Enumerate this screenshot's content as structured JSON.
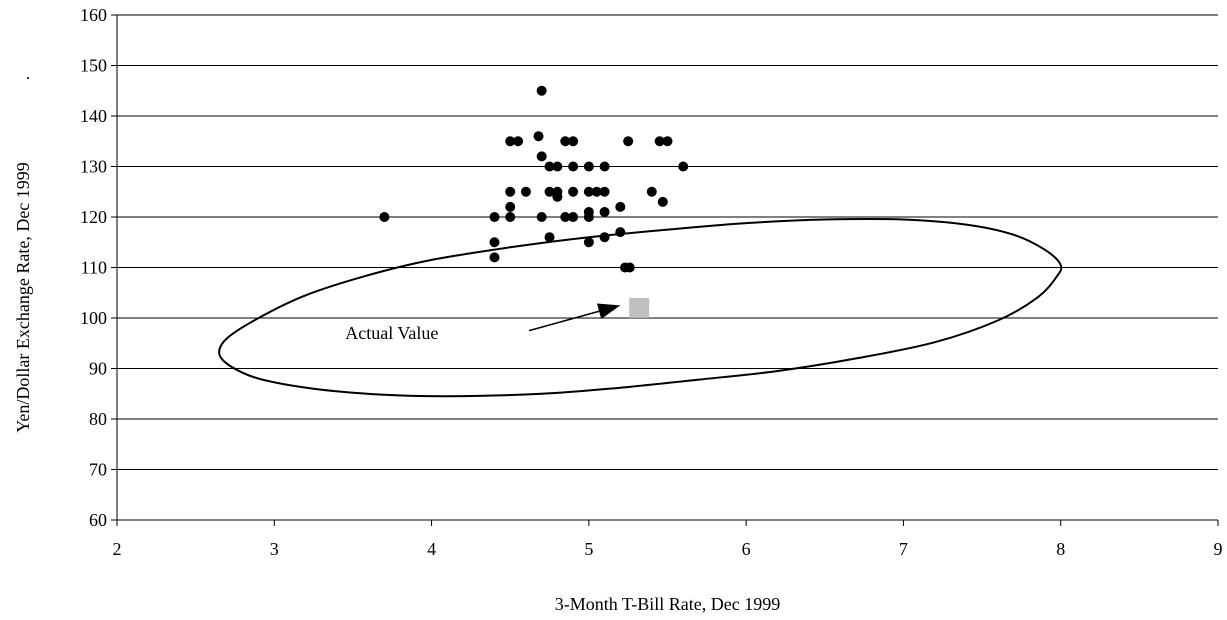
{
  "chart_data": {
    "type": "scatter",
    "title": "",
    "xlabel": "3-Month T-Bill Rate, Dec 1999",
    "ylabel": "Yen/Dollar Exchange Rate, Dec 1999",
    "ylabel_trailing_mark": ".",
    "xlim": [
      2,
      9
    ],
    "ylim": [
      60,
      160
    ],
    "x_ticks": [
      2,
      3,
      4,
      5,
      6,
      7,
      8,
      9
    ],
    "y_ticks": [
      60,
      70,
      80,
      90,
      100,
      110,
      120,
      130,
      140,
      150,
      160
    ],
    "grid": "horizontal",
    "legend": "none",
    "series": [
      {
        "marker": "circle",
        "color": "#000000",
        "points": [
          [
            3.7,
            120
          ],
          [
            4.4,
            120
          ],
          [
            4.4,
            115
          ],
          [
            4.4,
            112
          ],
          [
            4.5,
            125
          ],
          [
            4.5,
            122
          ],
          [
            4.5,
            120
          ],
          [
            4.5,
            135
          ],
          [
            4.55,
            135
          ],
          [
            4.6,
            125
          ],
          [
            4.7,
            145
          ],
          [
            4.68,
            136
          ],
          [
            4.7,
            132
          ],
          [
            4.7,
            120
          ],
          [
            4.75,
            130
          ],
          [
            4.75,
            125
          ],
          [
            4.75,
            116
          ],
          [
            4.8,
            130
          ],
          [
            4.8,
            125
          ],
          [
            4.8,
            124
          ],
          [
            4.85,
            135
          ],
          [
            4.85,
            120
          ],
          [
            4.9,
            135
          ],
          [
            4.9,
            130
          ],
          [
            4.9,
            125
          ],
          [
            4.9,
            120
          ],
          [
            5.0,
            130
          ],
          [
            5.0,
            125
          ],
          [
            5.0,
            121
          ],
          [
            5.0,
            120
          ],
          [
            5.0,
            115
          ],
          [
            5.05,
            125
          ],
          [
            5.1,
            130
          ],
          [
            5.1,
            125
          ],
          [
            5.1,
            121
          ],
          [
            5.1,
            116
          ],
          [
            5.2,
            122
          ],
          [
            5.2,
            117
          ],
          [
            5.23,
            110
          ],
          [
            5.26,
            110
          ],
          [
            5.25,
            135
          ],
          [
            5.45,
            135
          ],
          [
            5.5,
            135
          ],
          [
            5.4,
            125
          ],
          [
            5.47,
            123
          ],
          [
            5.6,
            130
          ]
        ]
      }
    ],
    "actual_value": {
      "x": 5.32,
      "y": 102,
      "marker": "square",
      "color": "#c0c0c0"
    },
    "annotation": {
      "text": "Actual Value",
      "text_x": 3.75,
      "text_y": 97,
      "arrow_from": [
        4.62,
        97.5
      ],
      "arrow_to": [
        5.2,
        102.5
      ]
    },
    "confidence_ellipse": {
      "shape": [
        [
          8.0,
          110.5
        ],
        [
          7.9,
          113.5
        ],
        [
          7.7,
          116.5
        ],
        [
          7.4,
          118.5
        ],
        [
          7.0,
          119.5
        ],
        [
          6.5,
          119.5
        ],
        [
          6.0,
          118.8
        ],
        [
          5.5,
          117.5
        ],
        [
          5.0,
          116.0
        ],
        [
          4.5,
          114.0
        ],
        [
          4.0,
          111.5
        ],
        [
          3.6,
          108.5
        ],
        [
          3.2,
          104.5
        ],
        [
          2.9,
          100.0
        ],
        [
          2.7,
          96.0
        ],
        [
          2.65,
          93.0
        ],
        [
          2.72,
          90.5
        ],
        [
          2.9,
          88.0
        ],
        [
          3.25,
          86.0
        ],
        [
          3.7,
          84.8
        ],
        [
          4.1,
          84.5
        ],
        [
          4.7,
          85.0
        ],
        [
          5.2,
          86.2
        ],
        [
          5.7,
          87.8
        ],
        [
          6.2,
          89.5
        ],
        [
          6.7,
          92.0
        ],
        [
          7.2,
          95.2
        ],
        [
          7.6,
          99.5
        ],
        [
          7.85,
          104.0
        ],
        [
          7.97,
          108.0
        ]
      ],
      "color": "#000000"
    }
  }
}
